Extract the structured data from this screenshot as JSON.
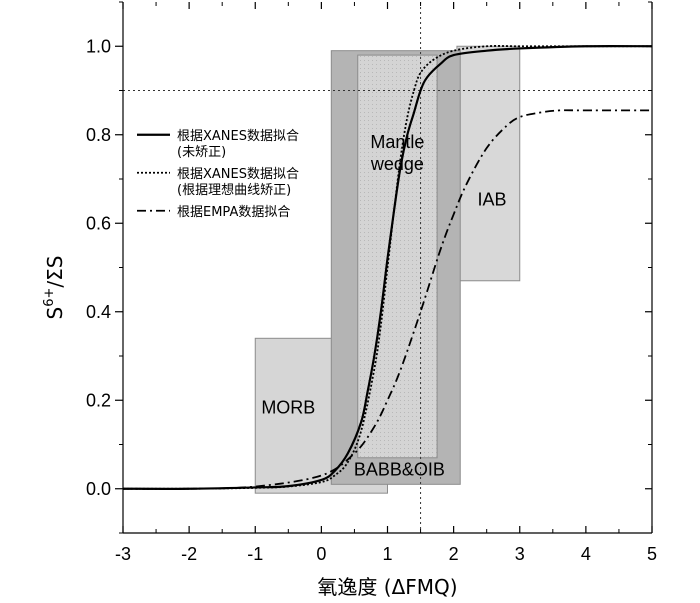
{
  "chart_data": {
    "type": "line",
    "xlabel": "氧逸度 (ΔFMQ)",
    "ylabel_main": "S",
    "ylabel_sup": "6+",
    "ylabel_rest": "/ΣS",
    "xlim": [
      -3,
      5
    ],
    "ylim": [
      -0.1,
      1.1
    ],
    "xticks": [
      -3,
      -2,
      -1,
      0,
      1,
      2,
      3,
      4,
      5
    ],
    "xtick_labels": [
      "-3",
      "-2",
      "-1",
      "0",
      "1",
      "2",
      "3",
      "4",
      "5"
    ],
    "yticks": [
      0.0,
      0.2,
      0.4,
      0.6,
      0.8,
      1.0
    ],
    "ytick_labels": [
      "0.0",
      "0.2",
      "0.4",
      "0.6",
      "0.8",
      "1.0"
    ],
    "reference_lines": {
      "vertical_x": 1.5,
      "horizontal_y": 0.9
    },
    "regions": [
      {
        "name": "MORB",
        "x": [
          -1.0,
          1.0
        ],
        "y": [
          -0.01,
          0.34
        ],
        "color": "#d6d6d6"
      },
      {
        "name": "BABB&OIB",
        "x": [
          0.15,
          2.1
        ],
        "y": [
          0.01,
          0.99
        ],
        "color": "#b4b4b4"
      },
      {
        "name": "Mantle wedge",
        "label_lines": [
          "Mantle",
          "wedge"
        ],
        "x": [
          0.55,
          1.75
        ],
        "y": [
          0.07,
          0.98
        ],
        "color": "#e2e2e2"
      },
      {
        "name": "IAB",
        "x": [
          2.05,
          3.0
        ],
        "y": [
          0.47,
          1.0
        ],
        "color": "#d8d8d8"
      }
    ],
    "series": [
      {
        "name": "根据XANES数据拟合",
        "name_line2": "(未矫正)",
        "style": "solid",
        "x": [
          -3,
          -2,
          -1,
          -0.5,
          0,
          0.2,
          0.4,
          0.6,
          0.7,
          0.8,
          0.9,
          1.0,
          1.1,
          1.2,
          1.3,
          1.4,
          1.5,
          1.6,
          1.8,
          2.0,
          2.5,
          3.0,
          4.0,
          5.0
        ],
        "y": [
          0.0,
          0.0,
          0.003,
          0.006,
          0.02,
          0.04,
          0.08,
          0.15,
          0.22,
          0.3,
          0.4,
          0.52,
          0.63,
          0.73,
          0.8,
          0.85,
          0.9,
          0.93,
          0.96,
          0.98,
          0.99,
          0.995,
          1.0,
          1.0
        ]
      },
      {
        "name": "根据XANES数据拟合",
        "name_line2": "(根据理想曲线矫正)",
        "style": "dotted",
        "x": [
          -3,
          -2,
          -1,
          -0.5,
          0,
          0.2,
          0.4,
          0.6,
          0.8,
          0.9,
          1.0,
          1.1,
          1.2,
          1.3,
          1.4,
          1.5,
          1.7,
          2.0,
          2.5,
          3.0,
          4.0,
          5.0
        ],
        "y": [
          0.0,
          0.0,
          0.002,
          0.005,
          0.015,
          0.03,
          0.06,
          0.13,
          0.27,
          0.37,
          0.5,
          0.63,
          0.75,
          0.84,
          0.9,
          0.94,
          0.97,
          0.99,
          1.0,
          1.0,
          1.0,
          1.0
        ]
      },
      {
        "name": "根据EMPA数据拟合",
        "name_line2": "",
        "style": "dashdot",
        "x": [
          -3,
          -2,
          -1,
          0,
          0.5,
          0.8,
          1.0,
          1.2,
          1.5,
          1.8,
          2.0,
          2.2,
          2.5,
          2.8,
          3.0,
          3.3,
          3.6,
          4.0,
          5.0
        ],
        "y": [
          0.0,
          0.0,
          0.005,
          0.03,
          0.08,
          0.14,
          0.2,
          0.27,
          0.4,
          0.54,
          0.62,
          0.69,
          0.77,
          0.82,
          0.84,
          0.85,
          0.855,
          0.855,
          0.855
        ]
      }
    ],
    "legend_position": "upper-left"
  }
}
